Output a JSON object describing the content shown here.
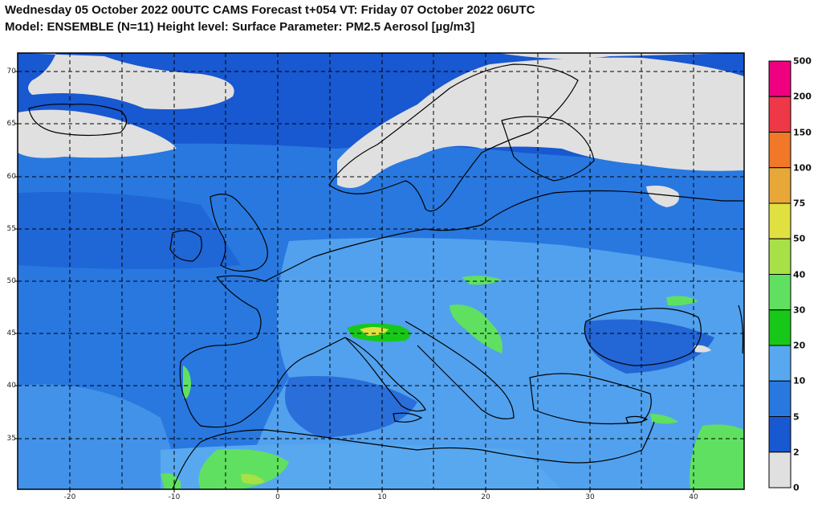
{
  "title": {
    "line1": "Wednesday 05 October 2022 00UTC CAMS Forecast t+054 VT: Friday 07 October 2022 06UTC",
    "line2": "Model: ENSEMBLE (N=11)  Height level: Surface  Parameter: PM2.5 Aerosol [µg/m3]"
  },
  "map": {
    "lat_labels": [
      "70",
      "65",
      "60",
      "55",
      "50",
      "45",
      "40",
      "35"
    ],
    "lon_labels": [
      "-20",
      "-10",
      "0",
      "10",
      "20",
      "30",
      "40"
    ],
    "grid": true,
    "background_category": "5-10 dominant over ocean and land; >0-2 (grey) over the far north"
  },
  "colorbar": {
    "labels": [
      "500",
      "200",
      "150",
      "100",
      "75",
      "50",
      "40",
      "30",
      "20",
      "10",
      "5",
      "2",
      "0"
    ],
    "colors": [
      "#ee0080",
      "#ee3848",
      "#f07828",
      "#e8a838",
      "#e0e040",
      "#a8e048",
      "#60e060",
      "#18c818",
      "#58a8f0",
      "#2878e0",
      "#1858d0",
      "#e0e0e0"
    ]
  }
}
